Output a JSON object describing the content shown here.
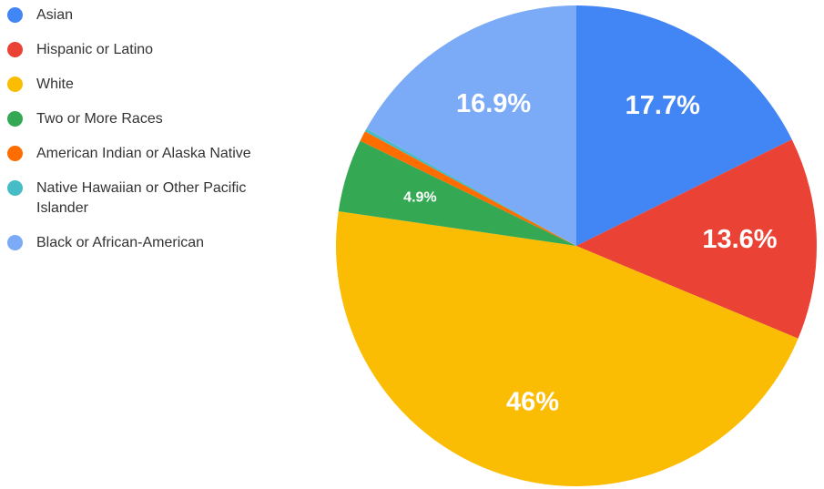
{
  "chart_data": {
    "type": "pie",
    "categories": [
      "Asian",
      "Hispanic or Latino",
      "White",
      "Two or More Races",
      "American Indian or Alaska Native",
      "Native Hawaiian or Other Pacific Islander",
      "Black or African-American"
    ],
    "values": [
      17.7,
      13.6,
      46,
      4.9,
      0.7,
      0.2,
      16.9
    ],
    "value_labels": [
      "17.7%",
      "13.6%",
      "46%",
      "4.9%",
      null,
      null,
      "16.9%"
    ],
    "colors": [
      "#4285f4",
      "#ea4335",
      "#fbbc04",
      "#34a853",
      "#ff6d01",
      "#46bdc6",
      "#7baaf7"
    ],
    "legend": "left"
  }
}
